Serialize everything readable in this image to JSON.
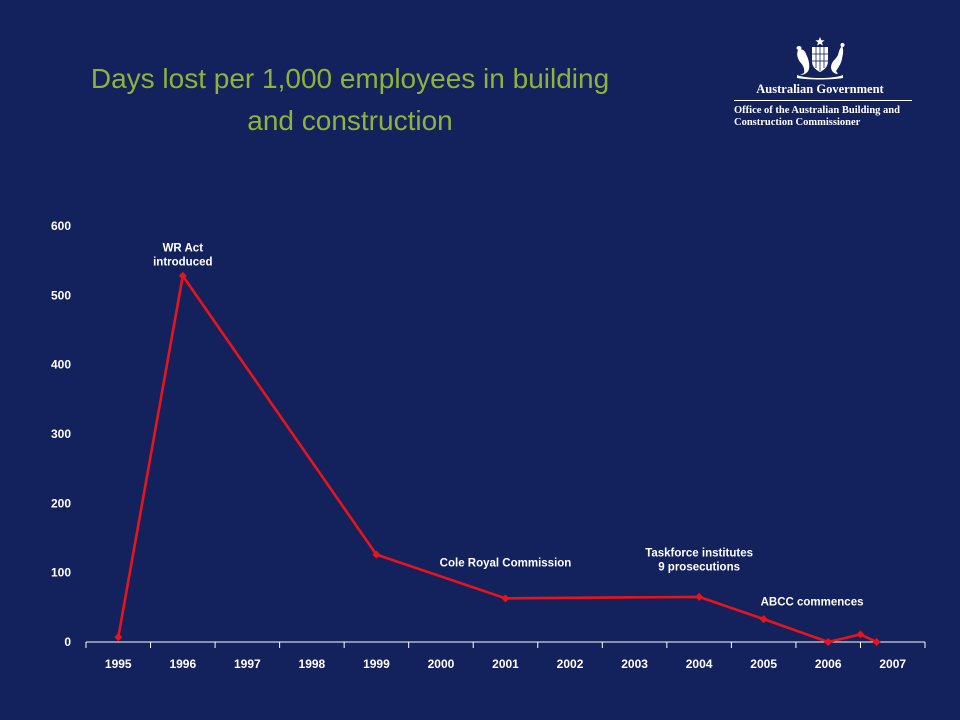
{
  "slide": {
    "title_lines": [
      "Days lost per 1,000 employees in building",
      "and construction"
    ]
  },
  "logo": {
    "government": "Australian Government",
    "office_lines": [
      "Office of the Australian Building and",
      "Construction Commissioner"
    ]
  },
  "colors": {
    "background": "#13225c",
    "title": "#8fb23a",
    "series": "#e8141c",
    "text": "#ffffff"
  },
  "chart_data": {
    "type": "line",
    "title": "Days lost per 1,000 employees in building and construction",
    "xlabel": "",
    "ylabel": "",
    "ylim": [
      0,
      600
    ],
    "yticks": [
      0,
      100,
      200,
      300,
      400,
      500,
      600
    ],
    "categories": [
      "1995",
      "1996",
      "1997",
      "1998",
      "1999",
      "2000",
      "2001",
      "2002",
      "2003",
      "2004",
      "2005",
      "2006",
      "2007"
    ],
    "grid": false,
    "legend": "none",
    "series": [
      {
        "name": "",
        "points": [
          {
            "x": 1995.5,
            "y": 7
          },
          {
            "x": 1996.5,
            "y": 528
          },
          {
            "x": 1999.5,
            "y": 126
          },
          {
            "x": 2001.5,
            "y": 63
          },
          {
            "x": 2004.5,
            "y": 65
          },
          {
            "x": 2005.5,
            "y": 33
          },
          {
            "x": 2006.5,
            "y": 0
          },
          {
            "x": 2007.0,
            "y": 11
          },
          {
            "x": 2007.25,
            "y": 0
          }
        ]
      }
    ],
    "annotations": [
      {
        "lines": [
          "WR Act",
          "introduced"
        ],
        "x": 1996.5,
        "y": 563
      },
      {
        "lines": [
          "Cole Royal Commission"
        ],
        "x": 2001.5,
        "y": 109
      },
      {
        "lines": [
          "Taskforce institutes",
          "9 prosecutions"
        ],
        "x": 2004.5,
        "y": 123
      },
      {
        "lines": [
          "ABCC commences"
        ],
        "x": 2006.25,
        "y": 53
      }
    ]
  }
}
